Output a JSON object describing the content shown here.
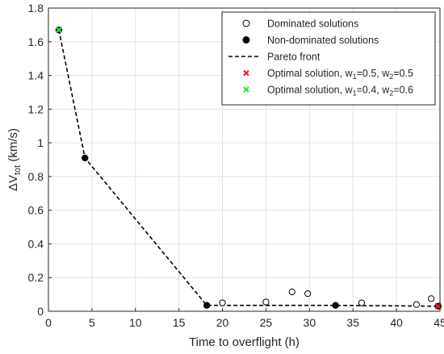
{
  "chart_data": {
    "type": "scatter",
    "xlabel": "Time to overflight (h)",
    "ylabel": "ΔV",
    "ylabel_sub": "tot",
    "ylabel_unit": " (km/s)",
    "xlim": [
      0,
      45
    ],
    "ylim": [
      0,
      1.8
    ],
    "xticks": [
      0,
      5,
      10,
      15,
      20,
      25,
      30,
      35,
      40,
      45
    ],
    "yticks": [
      0,
      0.2,
      0.4,
      0.6,
      0.8,
      1,
      1.2,
      1.4,
      1.6,
      1.8
    ],
    "xtick_labels": [
      "0",
      "5",
      "10",
      "15",
      "20",
      "25",
      "30",
      "35",
      "40",
      "45"
    ],
    "ytick_labels": [
      "0",
      "0.2",
      "0.4",
      "0.6",
      "0.8",
      "1",
      "1.2",
      "1.4",
      "1.6",
      "1.8"
    ],
    "grid": true,
    "legend_position": "top-right",
    "series": [
      {
        "name": "Dominated solutions",
        "marker": "open-circle",
        "color": "#000000",
        "x": [
          20.0,
          25.0,
          28.0,
          29.8,
          36.0,
          42.3,
          44.0
        ],
        "y": [
          0.05,
          0.055,
          0.115,
          0.105,
          0.05,
          0.04,
          0.075
        ]
      },
      {
        "name": "Non-dominated solutions",
        "marker": "filled-circle",
        "color": "#000000",
        "x": [
          1.2,
          4.2,
          18.2,
          33.0,
          44.8
        ],
        "y": [
          1.67,
          0.91,
          0.035,
          0.035,
          0.03
        ]
      },
      {
        "name": "Pareto front",
        "marker": "dashed-line",
        "color": "#000000",
        "x": [
          1.2,
          4.2,
          18.2,
          33.0,
          44.8
        ],
        "y": [
          1.67,
          0.91,
          0.035,
          0.035,
          0.03
        ]
      },
      {
        "name": "Optimal solution, w",
        "legend_parts": [
          "1",
          "=0.5, w",
          "2",
          "=0.5"
        ],
        "marker": "x",
        "color": "#e8262b",
        "x": [
          44.8
        ],
        "y": [
          0.03
        ]
      },
      {
        "name": "Optimal solution, w",
        "legend_parts": [
          "1",
          "=0.4, w",
          "2",
          "=0.6"
        ],
        "marker": "x",
        "color": "#3de03d",
        "x": [
          1.2
        ],
        "y": [
          1.67
        ]
      }
    ]
  }
}
